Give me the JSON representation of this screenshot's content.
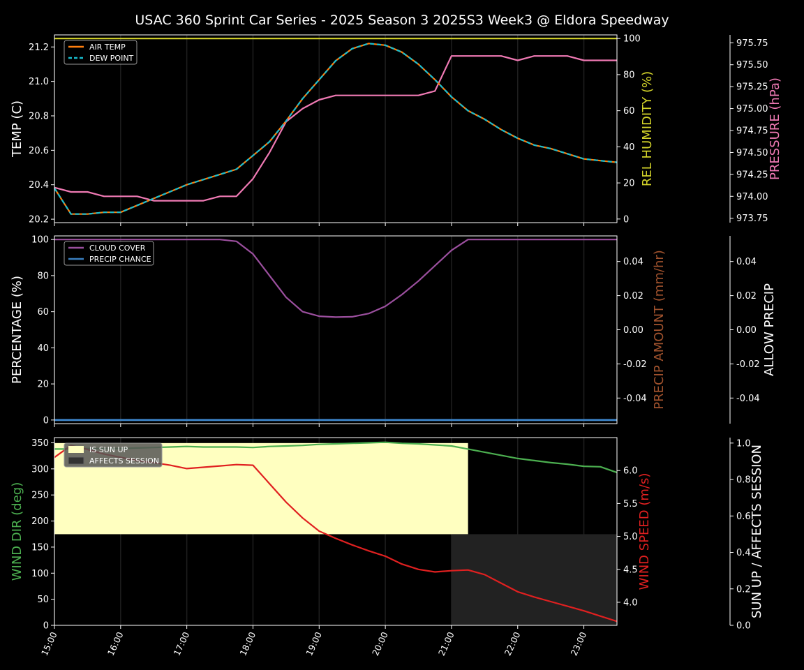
{
  "title": "USAC 360 Sprint Car Series - 2025 Season 3 2025S3 Week3 @ Eldora Speedway",
  "time_ticks": [
    "15:00",
    "16:00",
    "17:00",
    "18:00",
    "19:00",
    "20:00",
    "21:00",
    "22:00",
    "23:00"
  ],
  "colors": {
    "background": "#000000",
    "axes": "#ffffff",
    "air_temp": "#ff7f0e",
    "dew_point": "#17becf",
    "humidity": "#d4d42a",
    "pressure": "#f07ab4",
    "cloud_cover": "#9b4f9e",
    "precip_chance": "#3a7fc0",
    "precip_amount_label": "#a0522d",
    "wind_dir": "#4caf50",
    "wind_speed": "#e02020",
    "sun_up": "#ffffc0",
    "affects_session": "#222222"
  },
  "chart_data": [
    {
      "type": "line",
      "panel": "temperature",
      "x": [
        "15:00",
        "15:15",
        "15:30",
        "15:45",
        "16:00",
        "16:15",
        "16:30",
        "16:45",
        "17:00",
        "17:15",
        "17:30",
        "17:45",
        "18:00",
        "18:15",
        "18:30",
        "18:45",
        "19:00",
        "19:15",
        "19:30",
        "19:45",
        "20:00",
        "20:15",
        "20:30",
        "20:45",
        "21:00",
        "21:15",
        "21:30",
        "21:45",
        "22:00",
        "22:15",
        "22:30",
        "22:45",
        "23:00",
        "23:15",
        "23:30"
      ],
      "ylabel": "TEMP (C)",
      "ylim": [
        20.18,
        21.27
      ],
      "yticks": [
        "20.2",
        "20.4",
        "20.6",
        "20.8",
        "21.0",
        "21.2"
      ],
      "y2label": "REL HUMIDITY (%)",
      "y2lim": [
        -2,
        102
      ],
      "y2ticks": [
        "0",
        "20",
        "40",
        "60",
        "80",
        "100"
      ],
      "y3label": "PRESSURE (hPa)",
      "y3lim": [
        973.7,
        975.84
      ],
      "y3ticks": [
        "973.75",
        "974.00",
        "974.25",
        "974.50",
        "974.75",
        "975.00",
        "975.25",
        "975.50",
        "975.75"
      ],
      "legend": [
        "AIR TEMP",
        "DEW POINT"
      ],
      "legend_position": "top-left",
      "series": [
        {
          "name": "AIR TEMP",
          "axis": "left",
          "values": [
            20.38,
            20.23,
            20.23,
            20.24,
            20.24,
            20.28,
            20.32,
            20.36,
            20.4,
            20.43,
            20.46,
            20.49,
            20.57,
            20.65,
            20.77,
            20.9,
            21.01,
            21.12,
            21.19,
            21.22,
            21.21,
            21.17,
            21.1,
            21.01,
            20.91,
            20.83,
            20.78,
            20.72,
            20.67,
            20.63,
            20.61,
            20.58,
            20.55,
            20.54,
            20.53
          ]
        },
        {
          "name": "DEW POINT",
          "axis": "left",
          "dashed": true,
          "values": [
            20.38,
            20.23,
            20.23,
            20.24,
            20.24,
            20.28,
            20.32,
            20.36,
            20.4,
            20.43,
            20.46,
            20.49,
            20.57,
            20.65,
            20.77,
            20.9,
            21.01,
            21.12,
            21.19,
            21.22,
            21.21,
            21.17,
            21.1,
            21.01,
            20.91,
            20.83,
            20.78,
            20.72,
            20.67,
            20.63,
            20.61,
            20.58,
            20.55,
            20.54,
            20.53
          ]
        },
        {
          "axis": "right",
          "values": [
            100,
            100,
            100,
            100,
            100,
            100,
            100,
            100,
            100,
            100,
            100,
            100,
            100,
            100,
            100,
            100,
            100,
            100,
            100,
            100,
            100,
            100,
            100,
            100,
            100,
            100,
            100,
            100,
            100,
            100,
            100,
            100,
            100,
            100,
            100
          ]
        },
        {
          "axis": "right2",
          "values": [
            974.1,
            974.05,
            974.05,
            974.0,
            974.0,
            974.0,
            973.95,
            973.95,
            973.95,
            973.95,
            974.0,
            974.0,
            974.2,
            974.5,
            974.85,
            975.0,
            975.1,
            975.15,
            975.15,
            975.15,
            975.15,
            975.15,
            975.15,
            975.2,
            975.6,
            975.6,
            975.6,
            975.6,
            975.55,
            975.6,
            975.6,
            975.6,
            975.55,
            975.55,
            975.55
          ]
        }
      ]
    },
    {
      "type": "line",
      "panel": "precipitation",
      "ylabel": "PERCENTAGE (%)",
      "ylim": [
        -2,
        102
      ],
      "yticks": [
        "0",
        "20",
        "40",
        "60",
        "80",
        "100"
      ],
      "y2label": "PRECIP AMOUNT (mm/hr)",
      "y2lim": [
        -0.055,
        0.055
      ],
      "y2ticks": [
        "-0.04",
        "-0.02",
        "0.00",
        "0.02",
        "0.04"
      ],
      "y3label": "ALLOW PRECIP",
      "y3lim": [
        -0.055,
        0.055
      ],
      "y3ticks": [
        "-0.04",
        "-0.02",
        "0.00",
        "0.02",
        "0.04"
      ],
      "legend": [
        "CLOUD COVER",
        "PRECIP CHANCE"
      ],
      "legend_position": "top-left",
      "series": [
        {
          "name": "CLOUD COVER",
          "values": [
            100,
            100,
            100,
            100,
            100,
            100,
            100,
            100,
            100,
            100,
            100,
            99,
            92,
            80,
            68,
            60,
            57.5,
            57,
            57.2,
            59,
            63,
            69.5,
            77,
            85.5,
            94,
            100,
            100,
            100,
            100,
            100,
            100,
            100,
            100,
            100,
            100
          ]
        },
        {
          "name": "PRECIP CHANCE",
          "values": [
            0,
            0,
            0,
            0,
            0,
            0,
            0,
            0,
            0,
            0,
            0,
            0,
            0,
            0,
            0,
            0,
            0,
            0,
            0,
            0,
            0,
            0,
            0,
            0,
            0,
            0,
            0,
            0,
            0,
            0,
            0,
            0,
            0,
            0,
            0
          ]
        }
      ]
    },
    {
      "type": "line",
      "panel": "wind",
      "ylabel": "WIND DIR (deg)",
      "ylim": [
        0,
        360
      ],
      "yticks": [
        "0",
        "50",
        "100",
        "150",
        "200",
        "250",
        "300",
        "350"
      ],
      "y2label": "WIND SPEED (m/s)",
      "y2lim": [
        3.65,
        6.5
      ],
      "y2ticks": [
        "4.0",
        "4.5",
        "5.0",
        "5.5",
        "6.0"
      ],
      "y3label": "SUN UP / AFFECTS SESSION",
      "y3lim": [
        0,
        1.03
      ],
      "y3ticks": [
        "0.0",
        "0.2",
        "0.4",
        "0.6",
        "0.8",
        "1.0"
      ],
      "legend": [
        "IS SUN UP",
        "AFFECTS SESSION"
      ],
      "legend_position": "top-left",
      "is_sun_up": {
        "from": "15:00",
        "to": "21:15",
        "value": 1.0
      },
      "affects_session": {
        "from": "21:00",
        "to": "23:30",
        "value": 0.5
      },
      "series": [
        {
          "axis": "left",
          "values": [
            338,
            338,
            339,
            339,
            339,
            340,
            341,
            342,
            343,
            342,
            342,
            342,
            341,
            343,
            344,
            345,
            347,
            348,
            349,
            350,
            351,
            349,
            348,
            346,
            344,
            338,
            332,
            326,
            320,
            316,
            312,
            309,
            305,
            304,
            293
          ]
        },
        {
          "axis": "right",
          "values": [
            6.2,
            6.38,
            6.32,
            6.25,
            6.2,
            6.15,
            6.12,
            6.08,
            6.03,
            6.05,
            6.07,
            6.09,
            6.08,
            5.8,
            5.52,
            5.28,
            5.08,
            4.97,
            4.87,
            4.78,
            4.7,
            4.58,
            4.5,
            4.46,
            4.48,
            4.49,
            4.42,
            4.29,
            4.16,
            4.08,
            4.01,
            3.94,
            3.87,
            3.79,
            3.71
          ]
        }
      ]
    }
  ]
}
